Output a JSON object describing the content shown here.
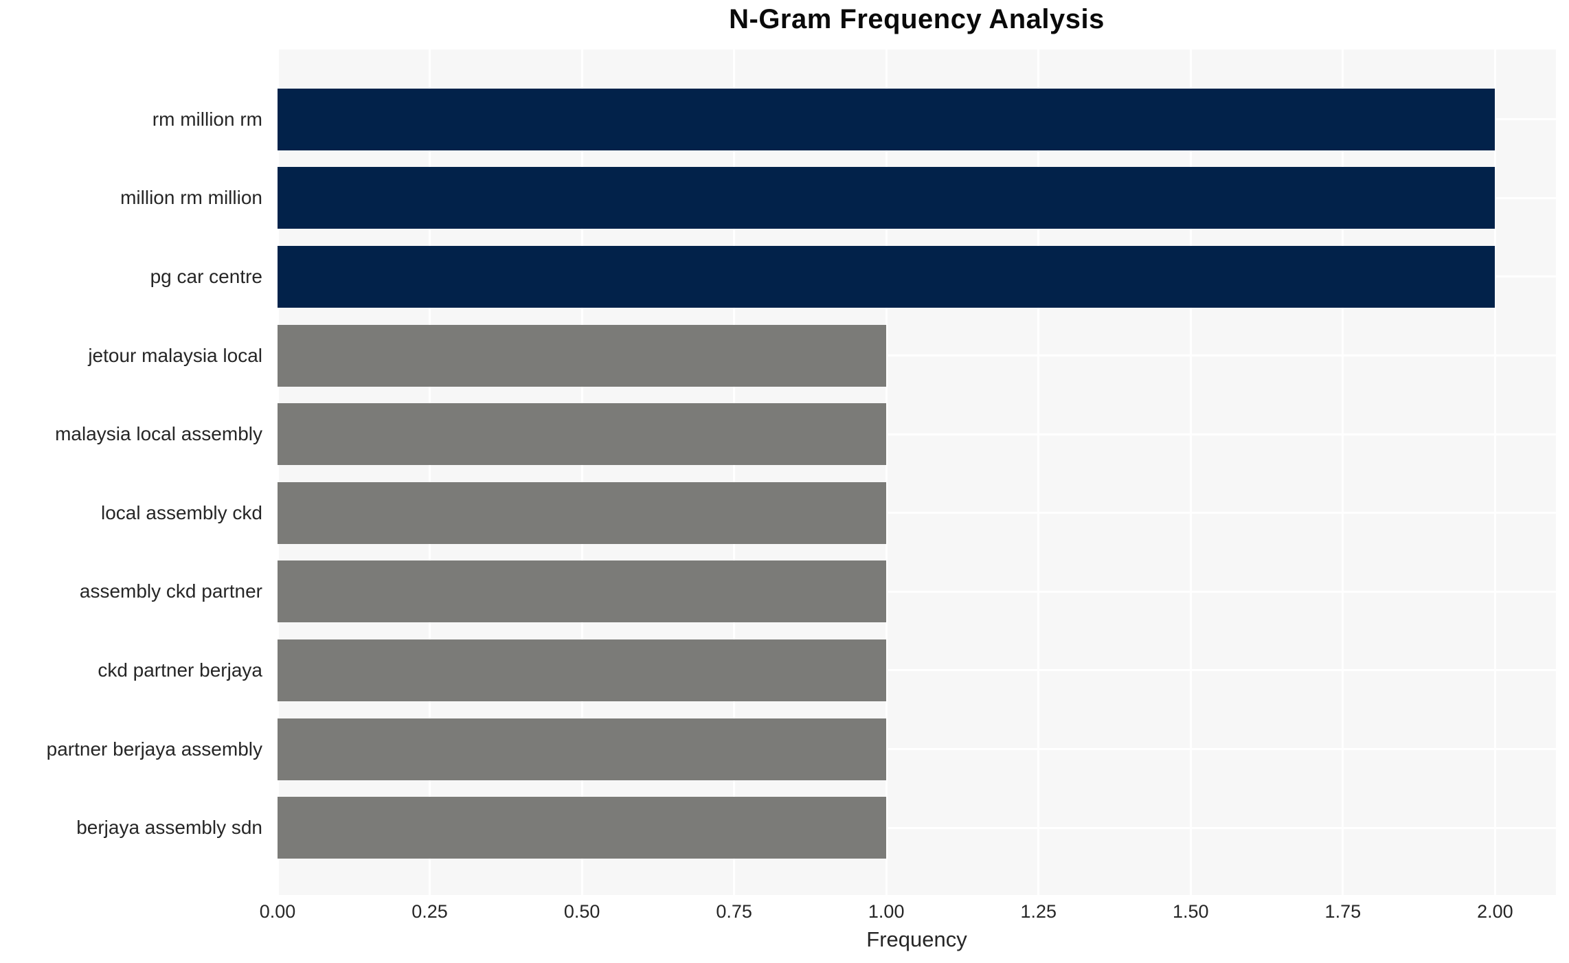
{
  "chart_data": {
    "type": "bar",
    "orientation": "horizontal",
    "title": "N-Gram Frequency Analysis",
    "xlabel": "Frequency",
    "ylabel": "",
    "categories": [
      "rm million rm",
      "million rm million",
      "pg car centre",
      "jetour malaysia local",
      "malaysia local assembly",
      "local assembly ckd",
      "assembly ckd partner",
      "ckd partner berjaya",
      "partner berjaya assembly",
      "berjaya assembly sdn"
    ],
    "values": [
      2.0,
      2.0,
      2.0,
      1.0,
      1.0,
      1.0,
      1.0,
      1.0,
      1.0,
      1.0
    ],
    "bar_colors": [
      "#02224a",
      "#02224a",
      "#02224a",
      "#7b7b78",
      "#7b7b78",
      "#7b7b78",
      "#7b7b78",
      "#7b7b78",
      "#7b7b78",
      "#7b7b78"
    ],
    "xtick_labels": [
      "0.00",
      "0.25",
      "0.50",
      "0.75",
      "1.00",
      "1.25",
      "1.50",
      "1.75",
      "2.00"
    ],
    "xtick_values": [
      0,
      0.25,
      0.5,
      0.75,
      1.0,
      1.25,
      1.5,
      1.75,
      2.0
    ],
    "xlim": [
      0,
      2.1
    ],
    "grid": true,
    "legend": "none",
    "colors": {
      "high_frequency_bar": "#02224a",
      "low_frequency_bar": "#7b7b78",
      "plot_background": "#f7f7f7",
      "gridline": "#ffffff",
      "tick_text": "#262626",
      "title_text": "#0a0a0a",
      "page_background": "#ffffff"
    }
  }
}
